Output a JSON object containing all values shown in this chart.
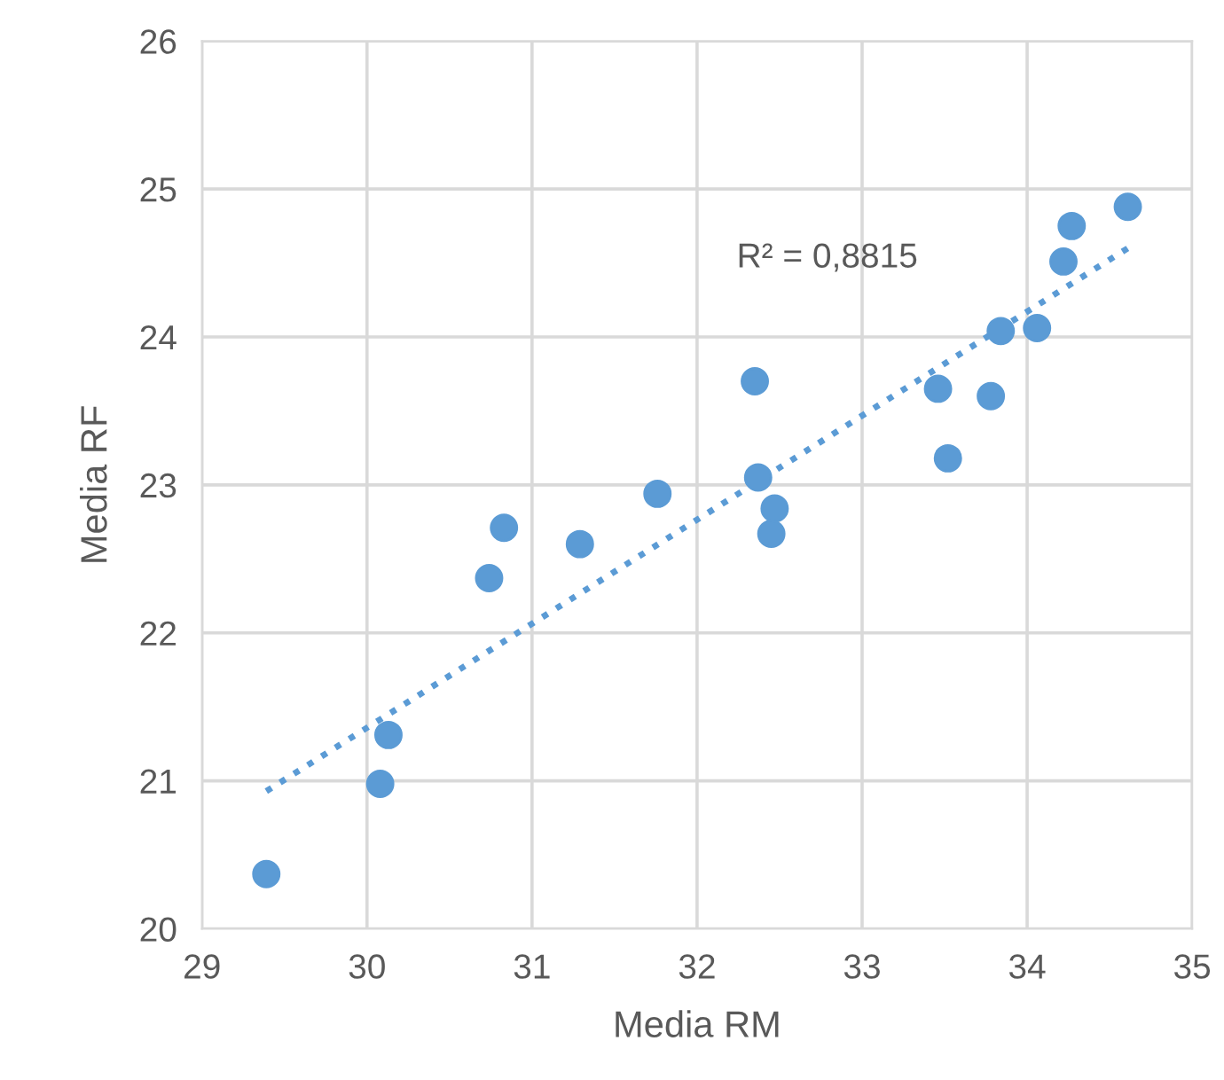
{
  "chart_data": {
    "type": "scatter",
    "xlabel": "Media RM",
    "ylabel": "Media RF",
    "xlim": [
      29,
      35
    ],
    "ylim": [
      20,
      26
    ],
    "xticks": [
      29,
      30,
      31,
      32,
      33,
      34,
      35
    ],
    "yticks": [
      20,
      21,
      22,
      23,
      24,
      25,
      26
    ],
    "grid": true,
    "legend": false,
    "marker": "circle",
    "annotations": [
      "R² = 0,8815"
    ],
    "series": [
      {
        "color": "#5b9bd5",
        "x": [
          29.39,
          30.08,
          30.13,
          30.74,
          30.83,
          31.29,
          31.76,
          32.35,
          32.37,
          32.47,
          32.45,
          33.46,
          33.52,
          33.78,
          33.84,
          34.06,
          34.22,
          34.27,
          34.61
        ],
        "values": [
          20.37,
          20.98,
          21.31,
          22.37,
          22.71,
          22.6,
          22.94,
          23.7,
          23.05,
          22.84,
          22.67,
          23.65,
          23.18,
          23.6,
          24.04,
          24.06,
          24.51,
          24.75,
          24.88
        ]
      },
      {
        "type": "line",
        "color": "#5b9bd5",
        "line_style": "dotted",
        "marker": "none",
        "x": [
          29.39,
          34.61
        ],
        "values": [
          20.93,
          24.6
        ]
      }
    ]
  }
}
